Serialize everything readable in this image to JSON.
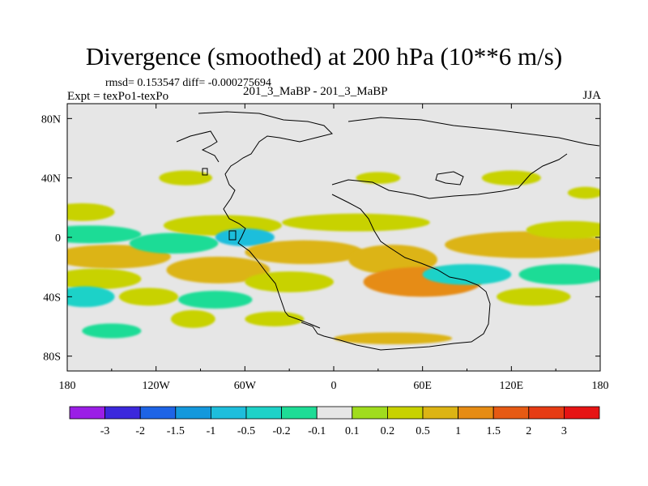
{
  "title": "Divergence (smoothed) at 200 hPa (10**6 m/s)",
  "stats_line": "rmsd= 0.153547  diff= -0.000275694",
  "experiment_label": "Expt = texPo1-texPo",
  "case_label": "201_3_MaBP - 201_3_MaBP",
  "season": "JJA",
  "chart_data": {
    "type": "heatmap",
    "title": "Divergence (smoothed) at 200 hPa (10**6 m/s)",
    "xlabel": "",
    "ylabel": "",
    "xlim": [
      -180,
      180
    ],
    "ylim": [
      -90,
      90
    ],
    "x_ticks": [
      -180,
      -120,
      -60,
      0,
      60,
      120,
      180
    ],
    "x_tick_labels": [
      "180",
      "120W",
      "60W",
      "0",
      "60E",
      "120E",
      "180"
    ],
    "y_ticks": [
      80,
      40,
      0,
      -40,
      -80
    ],
    "y_tick_labels": [
      "80N",
      "40N",
      "0",
      "40S",
      "80S"
    ],
    "colorbar": {
      "levels": [
        "-3",
        "-2",
        "-1.5",
        "-1",
        "-0.5",
        "-0.2",
        "-0.1",
        "0.1",
        "0.2",
        "0.5",
        "1",
        "1.5",
        "2",
        "3"
      ],
      "colors": [
        "#9b1ee6",
        "#3c28dc",
        "#1e64e6",
        "#1498dc",
        "#1ebedc",
        "#1ed2c8",
        "#1edc96",
        "#e6e6e6",
        "#a0dc1e",
        "#c8d200",
        "#dcb414",
        "#e68c14",
        "#e65a14",
        "#e63c14",
        "#e61414"
      ]
    },
    "fields": [
      {
        "lon": -170,
        "lat": 17,
        "w": 22,
        "h": 6,
        "value": 0.2
      },
      {
        "lon": -165,
        "lat": 2,
        "w": 35,
        "h": 6,
        "value": -0.2
      },
      {
        "lon": -150,
        "lat": -13,
        "w": 40,
        "h": 8,
        "value": 0.5
      },
      {
        "lon": -160,
        "lat": -28,
        "w": 30,
        "h": 7,
        "value": 0.2
      },
      {
        "lon": -168,
        "lat": -40,
        "w": 20,
        "h": 7,
        "value": -0.5
      },
      {
        "lon": -125,
        "lat": -40,
        "w": 20,
        "h": 6,
        "value": 0.2
      },
      {
        "lon": -150,
        "lat": -63,
        "w": 20,
        "h": 5,
        "value": -0.2
      },
      {
        "lon": -108,
        "lat": -4,
        "w": 30,
        "h": 7,
        "value": -0.2
      },
      {
        "lon": -78,
        "lat": -22,
        "w": 35,
        "h": 9,
        "value": 0.5
      },
      {
        "lon": -75,
        "lat": 8,
        "w": 40,
        "h": 7,
        "value": 0.2
      },
      {
        "lon": -60,
        "lat": 0,
        "w": 20,
        "h": 6,
        "value": -1
      },
      {
        "lon": -80,
        "lat": -42,
        "w": 25,
        "h": 6,
        "value": -0.2
      },
      {
        "lon": -95,
        "lat": -55,
        "w": 15,
        "h": 6,
        "value": 0.2
      },
      {
        "lon": -20,
        "lat": -10,
        "w": 40,
        "h": 8,
        "value": 0.5
      },
      {
        "lon": -30,
        "lat": -30,
        "w": 30,
        "h": 7,
        "value": 0.2
      },
      {
        "lon": 15,
        "lat": 10,
        "w": 50,
        "h": 6,
        "value": 0.2
      },
      {
        "lon": 40,
        "lat": -15,
        "w": 30,
        "h": 10,
        "value": 0.5
      },
      {
        "lon": 60,
        "lat": -30,
        "w": 40,
        "h": 10,
        "value": 1
      },
      {
        "lon": 90,
        "lat": -25,
        "w": 30,
        "h": 7,
        "value": -0.5
      },
      {
        "lon": 130,
        "lat": -5,
        "w": 55,
        "h": 9,
        "value": 0.5
      },
      {
        "lon": 160,
        "lat": 5,
        "w": 30,
        "h": 6,
        "value": 0.2
      },
      {
        "lon": 155,
        "lat": -25,
        "w": 30,
        "h": 7,
        "value": -0.2
      },
      {
        "lon": 135,
        "lat": -40,
        "w": 25,
        "h": 6,
        "value": 0.2
      },
      {
        "lon": 40,
        "lat": -68,
        "w": 40,
        "h": 4,
        "value": 0.5
      },
      {
        "lon": -100,
        "lat": 40,
        "w": 18,
        "h": 5,
        "value": 0.2
      },
      {
        "lon": 30,
        "lat": 40,
        "w": 15,
        "h": 4,
        "value": 0.2
      },
      {
        "lon": 120,
        "lat": 40,
        "w": 20,
        "h": 5,
        "value": 0.2
      },
      {
        "lon": 170,
        "lat": 30,
        "w": 12,
        "h": 4,
        "value": 0.2
      },
      {
        "lon": -40,
        "lat": -55,
        "w": 20,
        "h": 5,
        "value": 0.2
      }
    ]
  }
}
